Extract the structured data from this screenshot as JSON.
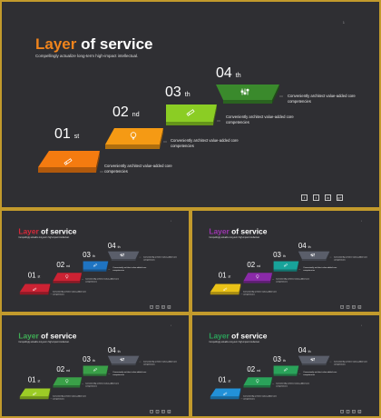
{
  "slide": {
    "page_number": "1",
    "title_accent": "Layer",
    "title_rest": " of service",
    "subtitle": "Compellingly actualize long-term high-impact intellectual.",
    "steps": [
      {
        "num": "01",
        "suffix": "st",
        "icon": "pencil-icon",
        "desc": "Conveniently architect value-added core competencies"
      },
      {
        "num": "02",
        "suffix": "nd",
        "icon": "lightbulb-icon",
        "desc": "Conveniently architect value-added core competencies"
      },
      {
        "num": "03",
        "suffix": "th",
        "icon": "pencil-icon",
        "desc": "Conveniently architect value-added core competencies"
      },
      {
        "num": "04",
        "suffix": "th",
        "icon": "sliders-icon",
        "desc": "Conveniently architect value-added core competencies"
      }
    ],
    "social": [
      "f",
      "t",
      "in",
      "g+"
    ]
  },
  "variants": [
    {
      "accent": "#f0841c",
      "colors": [
        "#f47b10",
        "#f59a14",
        "#8bcd24",
        "#3a8a2c"
      ]
    },
    {
      "accent": "#d6293a",
      "colors": [
        "#cc2233",
        "#cc2233",
        "#1f74c2",
        "#5a5e6a"
      ]
    },
    {
      "accent": "#9d35b0",
      "colors": [
        "#eac217",
        "#8a2aa8",
        "#18a39a",
        "#5a5e6a"
      ]
    },
    {
      "accent": "#3fae55",
      "colors": [
        "#9ccc26",
        "#3aa048",
        "#3aa048",
        "#5a5e6a"
      ]
    },
    {
      "accent": "#2aa35a",
      "colors": [
        "#2291d8",
        "#2aa35a",
        "#2aa35a",
        "#5a5e6a"
      ]
    }
  ]
}
